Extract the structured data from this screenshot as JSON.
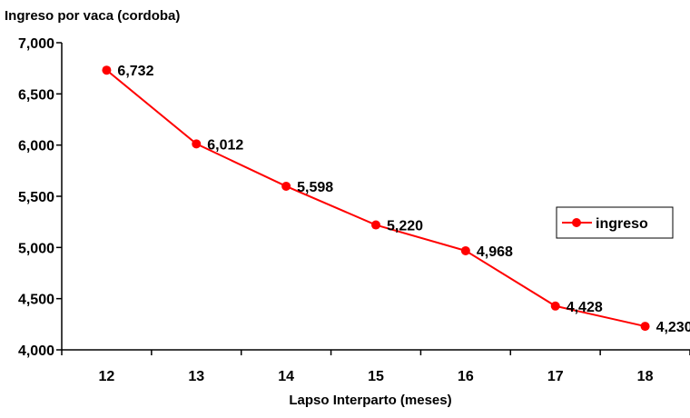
{
  "chart_data": {
    "type": "line",
    "title": "Ingreso por vaca (cordoba)",
    "xlabel": "Lapso Interparto (meses)",
    "ylabel": "",
    "categories": [
      "12",
      "13",
      "14",
      "15",
      "16",
      "17",
      "18"
    ],
    "series": [
      {
        "name": "ingreso",
        "values": [
          6732,
          6012,
          5598,
          5220,
          4968,
          4428,
          4230
        ],
        "labels": [
          "6,732",
          "6,012",
          "5,598",
          "5,220",
          "4,968",
          "4,428",
          "4,230"
        ],
        "color": "#ff0000"
      }
    ],
    "ylim": [
      4000,
      7000
    ],
    "yticks": [
      4000,
      4500,
      5000,
      5500,
      6000,
      6500,
      7000
    ],
    "ytick_labels": [
      "4,000",
      "4,500",
      "5,000",
      "5,500",
      "6,000",
      "6,500",
      "7,000"
    ],
    "grid": false,
    "legend_position": "right"
  }
}
